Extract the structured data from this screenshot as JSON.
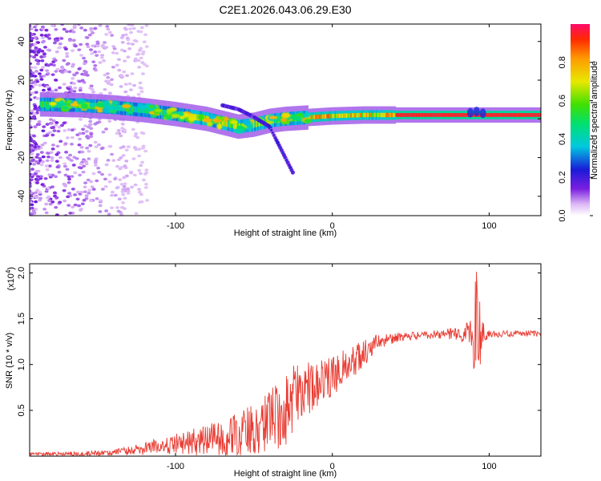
{
  "figure_title": "C2E1.2026.043.06.29.E30",
  "colors": {
    "snr_line": "#e83a30",
    "axis": "#000000",
    "background": "#ffffff"
  },
  "chart_data": [
    {
      "id": "spectrogram",
      "type": "heatmap",
      "title": "C2E1.2026.043.06.29.E30",
      "xlabel": "Height of straight line (km)",
      "ylabel": "Frequency (Hz)",
      "xlim": [
        -193,
        133
      ],
      "ylim": [
        -50,
        49
      ],
      "xticks": [
        -100,
        0,
        100
      ],
      "yticks": [
        -40,
        -20,
        0,
        20,
        40
      ],
      "colorbar": {
        "label": "Normalized spectral amplitude",
        "range": [
          0,
          1
        ],
        "ticks": [
          0.0,
          0.2,
          0.4,
          0.6,
          0.8
        ],
        "tick_labels": [
          "0.0",
          "0.2",
          "0.4",
          "0.6",
          "0.8"
        ],
        "colormap": "rainbow (white-violet-blue-cyan-green-yellow-orange-red)"
      },
      "ridges": [
        {
          "name": "main tone",
          "points": [
            [
              -185,
              7.5
            ],
            [
              -160,
              7
            ],
            [
              -140,
              6
            ],
            [
              -120,
              4.5
            ],
            [
              -100,
              2.5
            ],
            [
              -80,
              0
            ],
            [
              -70,
              -2
            ],
            [
              -60,
              -4
            ],
            [
              -50,
              -3
            ],
            [
              -40,
              -1
            ],
            [
              -30,
              0
            ],
            [
              -20,
              0.5
            ],
            [
              0,
              1.5
            ],
            [
              20,
              2
            ],
            [
              133,
              2
            ]
          ]
        },
        {
          "name": "secondary branch",
          "points": [
            [
              -70,
              7
            ],
            [
              -60,
              5
            ],
            [
              -50,
              1
            ],
            [
              -40,
              -4
            ],
            [
              -35,
              -12
            ],
            [
              -30,
              -20
            ],
            [
              -25,
              -28
            ]
          ]
        }
      ]
    },
    {
      "id": "snr",
      "type": "line",
      "xlabel": "Height of straight line (km)",
      "ylabel": "SNR (10 * v/v)",
      "y_multiplier_label": "(x10",
      "y_multiplier_exp": "4",
      "y_multiplier_close": ")",
      "xlim": [
        -193,
        133
      ],
      "ylim": [
        0,
        21000
      ],
      "xticks": [
        -100,
        0,
        100
      ],
      "yticks": [
        5000,
        10000,
        15000,
        20000
      ],
      "ytick_labels": [
        "0.5",
        "1.0",
        "1.5",
        "2.0"
      ],
      "trend": {
        "x": [
          -193,
          -160,
          -140,
          -120,
          -100,
          -80,
          -70,
          -60,
          -50,
          -40,
          -30,
          -20,
          -10,
          0,
          10,
          20,
          30,
          40,
          50,
          60,
          70,
          80,
          85,
          90,
          95,
          100,
          110,
          120,
          133
        ],
        "y": [
          200,
          250,
          400,
          800,
          1300,
          1700,
          2000,
          2300,
          3000,
          4000,
          5500,
          6800,
          7800,
          8800,
          10000,
          11300,
          12500,
          12900,
          13100,
          13200,
          13300,
          13400,
          13500,
          13500,
          13300,
          13300,
          13350,
          13400,
          13350
        ]
      },
      "noise_amplitude": {
        "x": [
          -193,
          -140,
          -120,
          -100,
          -80,
          -60,
          -40,
          -30,
          -20,
          -10,
          0,
          10,
          20,
          30,
          40,
          60,
          80,
          88,
          92,
          96,
          100,
          133
        ],
        "y": [
          200,
          300,
          700,
          1200,
          1700,
          2500,
          3500,
          4500,
          3500,
          2500,
          2200,
          2000,
          1500,
          900,
          500,
          400,
          700,
          1500,
          7000,
          1500,
          400,
          300
        ]
      }
    }
  ]
}
